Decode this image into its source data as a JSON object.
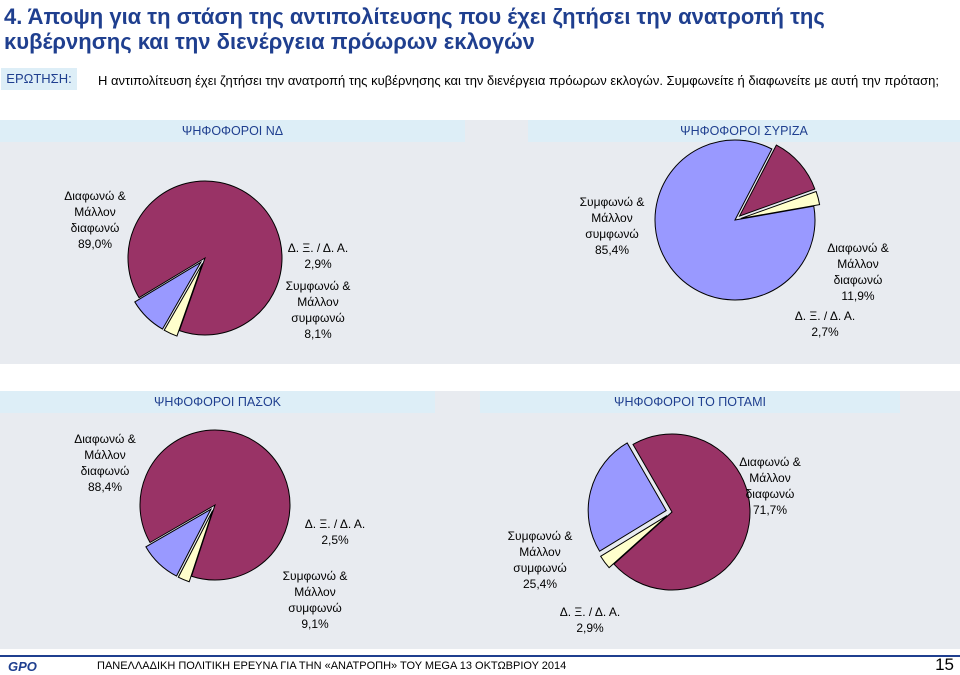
{
  "title": "4.  Άποψη για τη στάση της αντιπολίτευσης που έχει ζητήσει την ανατροπή της κυβέρνησης και την διενέργεια πρόωρων εκλογών",
  "question": {
    "label": "ΕΡΩΤΗΣΗ:",
    "text": "Η αντιπολίτευση έχει ζητήσει την ανατροπή της κυβέρνησης και την διενέργεια πρόωρων εκλογών. Συμφωνείτε ή διαφωνείτε με αυτή την πρόταση;"
  },
  "colors": {
    "disagree": "#993366",
    "agree": "#9999FF",
    "dk": "#FFFFCC",
    "header_bg": "#DDEEF7",
    "title": "#1F3F8F",
    "panel_bg": "#E8EBF0"
  },
  "chart_data": [
    {
      "type": "pie",
      "title": "ΨΗΦΟΦΟΡΟΙ ΝΔ",
      "slices": [
        {
          "label": "Διαφωνώ & Μάλλον διαφωνώ",
          "value": 89.0,
          "display": "89,0%",
          "color": "#993366"
        },
        {
          "label": "Συμφωνώ & Μάλλον συμφωνώ",
          "value": 8.1,
          "display": "8,1%",
          "color": "#9999FF"
        },
        {
          "label": "Δ. Ξ. / Δ. Α.",
          "value": 2.9,
          "display": "2,9%",
          "color": "#FFFFCC"
        }
      ]
    },
    {
      "type": "pie",
      "title": "ΨΗΦΟΦΟΡΟΙ ΣΥΡΙΖΑ",
      "slices": [
        {
          "label": "Συμφωνώ & Μάλλον συμφωνώ",
          "value": 85.4,
          "display": "85,4%",
          "color": "#9999FF"
        },
        {
          "label": "Διαφωνώ & Μάλλον διαφωνώ",
          "value": 11.9,
          "display": "11,9%",
          "color": "#993366"
        },
        {
          "label": "Δ. Ξ. / Δ. Α.",
          "value": 2.7,
          "display": "2,7%",
          "color": "#FFFFCC"
        }
      ]
    },
    {
      "type": "pie",
      "title": "ΨΗΦΟΦΟΡΟΙ ΠΑΣΟΚ",
      "slices": [
        {
          "label": "Διαφωνώ & Μάλλον διαφωνώ",
          "value": 88.4,
          "display": "88,4%",
          "color": "#993366"
        },
        {
          "label": "Συμφωνώ & Μάλλον συμφωνώ",
          "value": 9.1,
          "display": "9,1%",
          "color": "#9999FF"
        },
        {
          "label": "Δ. Ξ. / Δ. Α.",
          "value": 2.5,
          "display": "2,5%",
          "color": "#FFFFCC"
        }
      ]
    },
    {
      "type": "pie",
      "title": "ΨΗΦΟΦΟΡΟΙ ΤΟ ΠΟΤΑΜΙ",
      "slices": [
        {
          "label": "Διαφωνώ & Μάλλον διαφωνώ",
          "value": 71.7,
          "display": "71,7%",
          "color": "#993366"
        },
        {
          "label": "Συμφωνώ & Μάλλον συμφωνώ",
          "value": 25.4,
          "display": "25,4%",
          "color": "#9999FF"
        },
        {
          "label": "Δ. Ξ. / Δ. Α.",
          "value": 2.9,
          "display": "2,9%",
          "color": "#FFFFCC"
        }
      ]
    }
  ],
  "footer": {
    "logo_text": "GPO",
    "text": "ΠΑΝΕΛΛΑΔΙΚΗ ΠΟΛΙΤΙΚΗ ΕΡΕΥΝΑ ΓΙΑ ΤΗΝ «ΑΝΑΤΡΟΠΗ» ΤΟΥ MEGA  13  ΟΚΤΩΒΡΙΟΥ 2014",
    "page_number": "15"
  }
}
